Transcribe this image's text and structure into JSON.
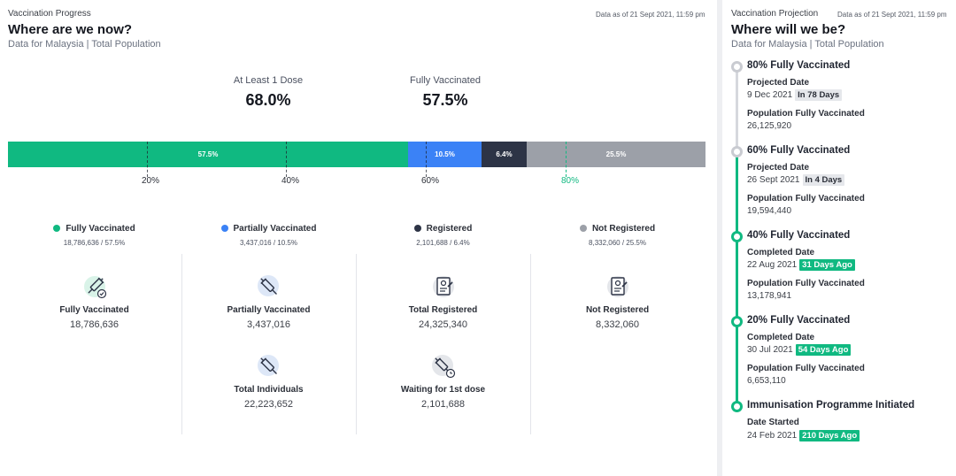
{
  "progress": {
    "section_label": "Vaccination Progress",
    "as_of": "Data as of 21 Sept 2021, 11:59 pm",
    "title": "Where are we now?",
    "subtitle": "Data for Malaysia | Total Population",
    "stats": [
      {
        "label": "At Least 1 Dose",
        "value": "68.0%"
      },
      {
        "label": "Fully Vaccinated",
        "value": "57.5%"
      }
    ],
    "bar": [
      {
        "label": "57.5%",
        "value": 57.5,
        "color": "#10b981"
      },
      {
        "label": "10.5%",
        "value": 10.5,
        "color": "#3b82f6"
      },
      {
        "label": "6.4%",
        "value": 6.4,
        "color": "#2d3446"
      },
      {
        "label": "25.5%",
        "value": 25.5,
        "color": "#9ca0a8"
      }
    ],
    "ticks": [
      "20%",
      "40%",
      "60%",
      "80%"
    ],
    "legend": [
      {
        "name": "Fully Vaccinated",
        "sub": "18,786,636 / 57.5%",
        "color": "#10b981"
      },
      {
        "name": "Partially Vaccinated",
        "sub": "3,437,016 / 10.5%",
        "color": "#3b82f6"
      },
      {
        "name": "Registered",
        "sub": "2,101,688 / 6.4%",
        "color": "#2d3446"
      },
      {
        "name": "Not Registered",
        "sub": "8,332,060 / 25.5%",
        "color": "#9ca0a8"
      }
    ],
    "cards": [
      {
        "icon": "syringe-check-icon",
        "label": "Fully Vaccinated",
        "value": "18,786,636"
      },
      {
        "icon": "syringe-icon",
        "label": "Partially Vaccinated",
        "value": "3,437,016"
      },
      {
        "icon": "registration-form-icon",
        "label": "Total Registered",
        "value": "24,325,340"
      },
      {
        "icon": "registration-form-icon",
        "label": "Not Registered",
        "value": "8,332,060"
      },
      {
        "icon": "syringe-icon",
        "label": "Total Individuals",
        "value": "22,223,652"
      },
      {
        "icon": "syringe-clock-icon",
        "label": "Waiting for 1st dose",
        "value": "2,101,688"
      }
    ]
  },
  "projection": {
    "section_label": "Vaccination Projection",
    "as_of": "Data as of 21 Sept 2021, 11:59 pm",
    "title": "Where will we be?",
    "subtitle": "Data for Malaysia | Total Population",
    "milestones": [
      {
        "title": "80% Fully Vaccinated",
        "date_label": "Projected Date",
        "date": "9 Dec 2021",
        "badge": "In 78 Days",
        "pop_label": "Population Fully Vaccinated",
        "pop": "26,125,920"
      },
      {
        "title": "60% Fully Vaccinated",
        "date_label": "Projected Date",
        "date": "26 Sept 2021",
        "badge": "In 4 Days",
        "pop_label": "Population Fully Vaccinated",
        "pop": "19,594,440"
      },
      {
        "title": "40% Fully Vaccinated",
        "date_label": "Completed Date",
        "date": "22 Aug 2021",
        "badge": "31 Days Ago",
        "pop_label": "Population Fully Vaccinated",
        "pop": "13,178,941"
      },
      {
        "title": "20% Fully Vaccinated",
        "date_label": "Completed Date",
        "date": "30 Jul 2021",
        "badge": "54 Days Ago",
        "pop_label": "Population Fully Vaccinated",
        "pop": "6,653,110"
      },
      {
        "title": "Immunisation Programme Initiated",
        "date_label": "Date Started",
        "date": "24 Feb 2021",
        "badge": "210 Days Ago"
      }
    ],
    "colors": {
      "done": "#10b981",
      "pending": "#c9cbd1"
    }
  }
}
